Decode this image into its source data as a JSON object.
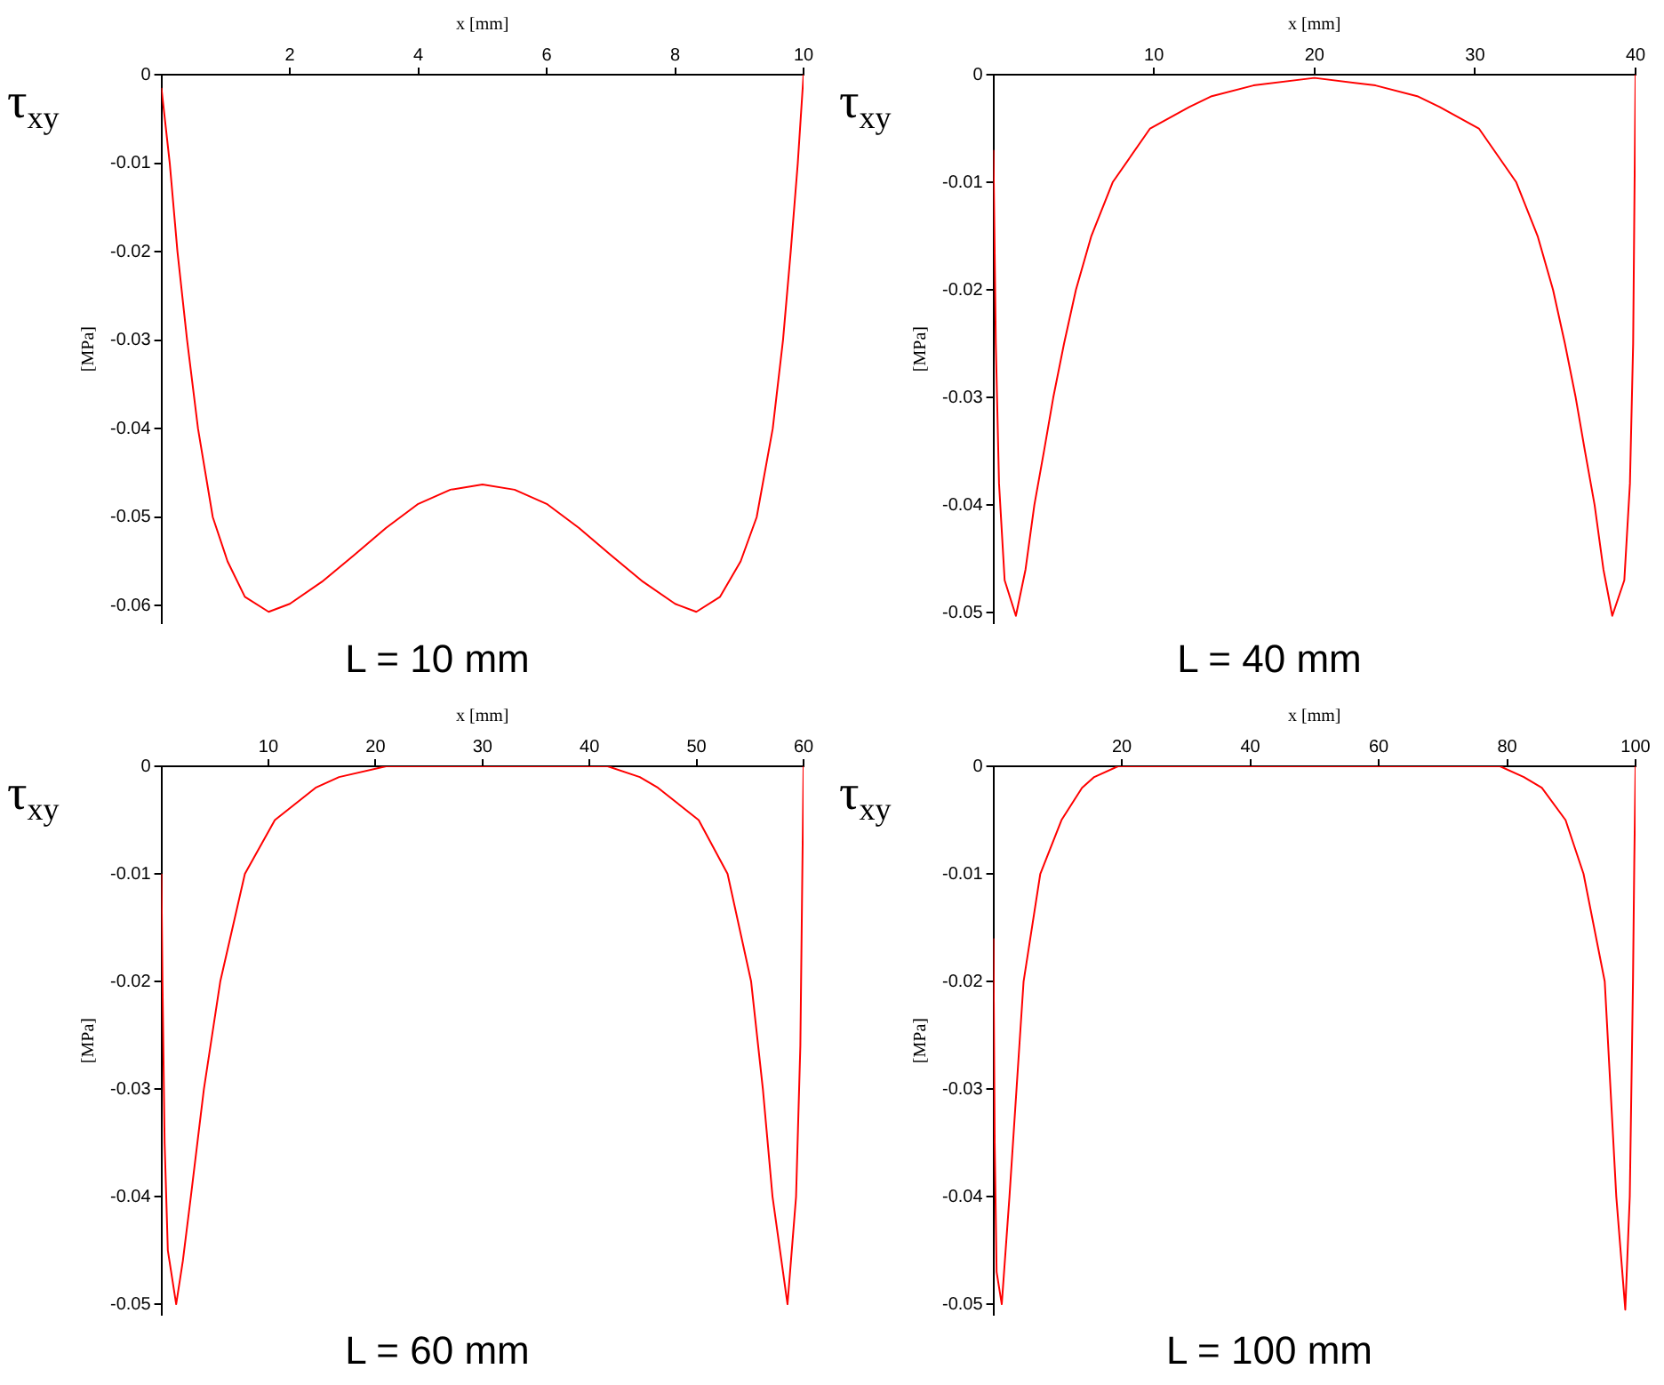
{
  "chart_data": [
    {
      "type": "line",
      "title": "L = 10 mm",
      "xlabel": "x [mm]",
      "ylabel": "[MPa]",
      "annotations": [
        "τ$_{xy}$"
      ],
      "x": [
        0,
        0.13,
        0.25,
        0.4,
        0.57,
        0.8,
        1.03,
        1.3,
        1.67,
        2.0,
        2.5,
        3.0,
        3.5,
        4.0,
        4.5,
        5.0,
        5.5,
        6.0,
        6.5,
        7.0,
        7.5,
        8.0,
        8.33,
        8.7,
        9.02,
        9.27,
        9.52,
        9.68,
        9.8,
        9.91,
        10
      ],
      "series": [
        {
          "color": "#ff0000",
          "values": [
            -0.0015,
            -0.01,
            -0.02,
            -0.03,
            -0.04,
            -0.05,
            -0.055,
            -0.059,
            -0.0607,
            -0.0598,
            -0.0573,
            -0.0543,
            -0.0512,
            -0.0485,
            -0.0469,
            -0.0463,
            -0.0469,
            -0.0485,
            -0.0512,
            -0.0543,
            -0.0573,
            -0.0598,
            -0.0607,
            -0.059,
            -0.055,
            -0.05,
            -0.04,
            -0.03,
            -0.02,
            -0.01,
            0
          ]
        }
      ],
      "xlim": [
        0,
        10
      ],
      "ylim": [
        -0.062,
        0
      ],
      "xticks": [
        2,
        4,
        6,
        8,
        10
      ],
      "yticks": [
        0,
        -0.01,
        -0.02,
        -0.03,
        -0.04,
        -0.05,
        -0.06
      ],
      "grid": false,
      "legend": false,
      "marker": "none",
      "line_style": "solid"
    },
    {
      "type": "line",
      "title": "L = 40 mm",
      "xlabel": "x [mm]",
      "ylabel": "[MPa]",
      "annotations": [
        "τ$_{xy}$"
      ],
      "x": [
        0,
        0.15,
        0.35,
        0.7,
        1.4,
        2.0,
        2.55,
        3.15,
        3.73,
        4.4,
        5.14,
        6.1,
        7.43,
        9.76,
        12.2,
        13.6,
        16.2,
        20,
        23.8,
        26.4,
        27.8,
        30.24,
        32.57,
        33.9,
        34.86,
        35.6,
        36.27,
        36.85,
        37.45,
        38.0,
        38.55,
        39.3,
        39.65,
        39.85,
        40
      ],
      "series": [
        {
          "color": "#ff0000",
          "values": [
            -0.007,
            -0.025,
            -0.038,
            -0.047,
            -0.0503,
            -0.046,
            -0.04,
            -0.035,
            -0.03,
            -0.025,
            -0.02,
            -0.015,
            -0.01,
            -0.005,
            -0.003,
            -0.002,
            -0.001,
            -0.0003,
            -0.001,
            -0.002,
            -0.003,
            -0.005,
            -0.01,
            -0.015,
            -0.02,
            -0.025,
            -0.03,
            -0.035,
            -0.04,
            -0.046,
            -0.0503,
            -0.047,
            -0.038,
            -0.025,
            0
          ]
        }
      ],
      "xlim": [
        0,
        40
      ],
      "ylim": [
        -0.051,
        0
      ],
      "xticks": [
        10,
        20,
        30,
        40
      ],
      "yticks": [
        0,
        -0.01,
        -0.02,
        -0.03,
        -0.04,
        -0.05
      ],
      "grid": false,
      "legend": false,
      "marker": "none",
      "line_style": "solid"
    },
    {
      "type": "line",
      "title": "L = 60 mm",
      "xlabel": "x [mm]",
      "ylabel": "[MPa]",
      "annotations": [
        "τ$_{xy}$"
      ],
      "x": [
        0,
        0.1,
        0.3,
        0.6,
        1.38,
        2.0,
        2.75,
        3.97,
        5.5,
        7.8,
        10.6,
        14.4,
        16.6,
        21,
        30,
        41.7,
        44.7,
        46.4,
        50.2,
        52.9,
        55.1,
        56.2,
        57.1,
        58.5,
        59.3,
        59.7,
        60
      ],
      "series": [
        {
          "color": "#ff0000",
          "values": [
            -0.01,
            -0.02,
            -0.035,
            -0.045,
            -0.05,
            -0.046,
            -0.04,
            -0.03,
            -0.02,
            -0.01,
            -0.005,
            -0.002,
            -0.001,
            0,
            0,
            0,
            -0.001,
            -0.002,
            -0.005,
            -0.01,
            -0.02,
            -0.03,
            -0.04,
            -0.05,
            -0.04,
            -0.026,
            0
          ]
        }
      ],
      "xlim": [
        0,
        60
      ],
      "ylim": [
        -0.051,
        0
      ],
      "xticks": [
        10,
        20,
        30,
        40,
        50,
        60
      ],
      "yticks": [
        0,
        -0.01,
        -0.02,
        -0.03,
        -0.04,
        -0.05
      ],
      "grid": false,
      "legend": false,
      "marker": "none",
      "line_style": "solid"
    },
    {
      "type": "line",
      "title": "L = 100 mm",
      "xlabel": "x [mm]",
      "ylabel": "[MPa]",
      "annotations": [
        "τ$_{xy}$"
      ],
      "x": [
        0,
        0.2,
        0.5,
        1.3,
        2.5,
        3.6,
        4.7,
        7.3,
        10.6,
        13.8,
        15.7,
        19.4,
        21,
        50,
        78.9,
        82.6,
        85.4,
        89.1,
        91.9,
        95.2,
        96.1,
        97.0,
        98.4,
        99.1,
        99.6,
        99.8,
        100
      ],
      "series": [
        {
          "color": "#ff0000",
          "values": [
            -0.016,
            -0.035,
            -0.047,
            -0.05,
            -0.04,
            -0.03,
            -0.02,
            -0.01,
            -0.005,
            -0.002,
            -0.001,
            0,
            0,
            0,
            0,
            -0.001,
            -0.002,
            -0.005,
            -0.01,
            -0.02,
            -0.03,
            -0.04,
            -0.0505,
            -0.04,
            -0.02,
            -0.009,
            0
          ]
        }
      ],
      "xlim": [
        0,
        100
      ],
      "ylim": [
        -0.051,
        0
      ],
      "xticks": [
        20,
        40,
        60,
        80,
        100
      ],
      "yticks": [
        0,
        -0.01,
        -0.02,
        -0.03,
        -0.04,
        -0.05
      ],
      "grid": false,
      "legend": false,
      "marker": "none",
      "line_style": "solid"
    }
  ]
}
